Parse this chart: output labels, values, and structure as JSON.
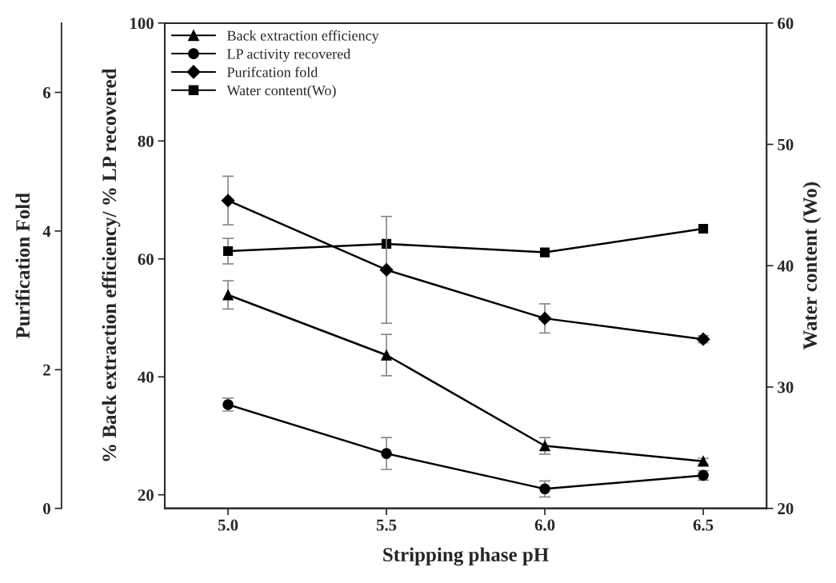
{
  "chart_data": {
    "type": "line",
    "x": [
      5.0,
      5.5,
      6.0,
      6.5
    ],
    "xlabel": "Stripping phase pH",
    "ylabel": "% Back extraction efficiency/ % LP recovered",
    "y2label": "Water content (Wo)",
    "y3label": "Purification Fold",
    "xlim": [
      4.8,
      6.7
    ],
    "xticks": [
      {
        "value": 5.0,
        "label": "5.0"
      },
      {
        "value": 5.5,
        "label": "5.5"
      },
      {
        "value": 6.0,
        "label": "6.0"
      },
      {
        "value": 6.5,
        "label": "6.5"
      }
    ],
    "ylim": [
      17.7,
      100
    ],
    "yticks": [
      20,
      40,
      60,
      80,
      100
    ],
    "y2lim": [
      20,
      60
    ],
    "y2ticks": [
      20,
      30,
      40,
      50,
      60
    ],
    "y3lim": [
      0,
      7
    ],
    "y3ticks": [
      0,
      2,
      4,
      6
    ],
    "legend": "top left",
    "grid": false,
    "line_style": "solid",
    "series": [
      {
        "name": "Back extraction efficiency",
        "color": "#000000",
        "marker": "triangle",
        "values": [
          53.9,
          43.7,
          28.3,
          25.7
        ],
        "errors": [
          2.4,
          3.5,
          1.4,
          0.5
        ]
      },
      {
        "name": "LP activity recovered",
        "color": "#000000",
        "marker": "circle",
        "values": [
          35.3,
          27.0,
          21.0,
          23.3
        ],
        "errors": [
          1.1,
          2.7,
          1.35,
          0.8
        ]
      },
      {
        "name": "Purifcation fold",
        "color": "#000000",
        "marker": "diamond",
        "axis": "y3",
        "values": [
          4.44,
          3.44,
          2.74,
          2.44
        ],
        "errors": [
          0.35,
          0.77,
          0.21,
          0.05
        ]
      },
      {
        "name": "Water content(Wo)",
        "color": "#000000",
        "marker": "square",
        "axis": "y2",
        "values": [
          41.2,
          41.8,
          41.1,
          43.05
        ],
        "errors": [
          1.05,
          null,
          null,
          null
        ]
      }
    ]
  }
}
